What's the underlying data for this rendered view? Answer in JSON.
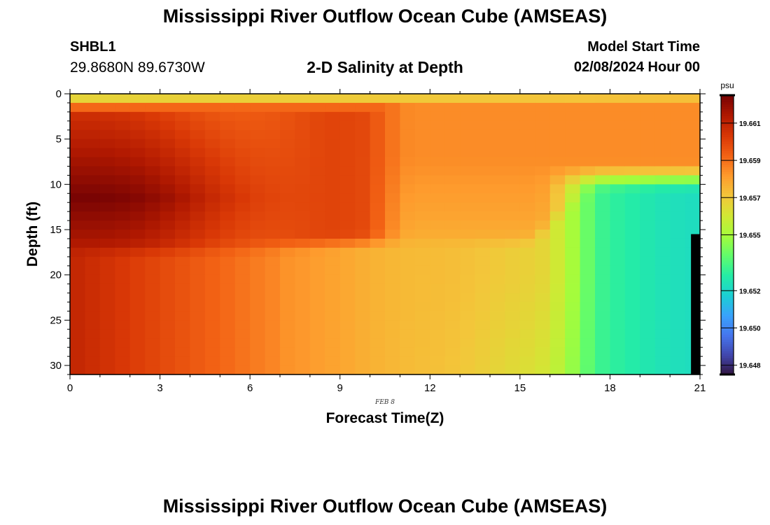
{
  "header": {
    "title": "Mississippi River Outflow Ocean Cube (AMSEAS)",
    "station_id": "SHBL1",
    "coordinates": "29.8680N  89.6730W",
    "plot_title": "2-D Salinity at Depth",
    "model_start_label": "Model Start Time",
    "model_start_value": "02/08/2024 Hour 00"
  },
  "footer": {
    "title": "Mississippi River Outflow Ocean Cube (AMSEAS)"
  },
  "chart_data": {
    "type": "heatmap",
    "title": "2-D Salinity at Depth",
    "xlabel": "Forecast Time(Z)",
    "ylabel": "Depth (ft)",
    "date_annotation": "FEB 8",
    "x_ticks": [
      0,
      3,
      6,
      9,
      12,
      15,
      18,
      21
    ],
    "y_ticks": [
      0,
      5,
      10,
      15,
      20,
      25,
      30
    ],
    "xlim": [
      0,
      21
    ],
    "ylim": [
      0,
      31
    ],
    "y_inverted": true,
    "no_data_region": {
      "x_start": 20.7,
      "depth_start": 15.5
    },
    "colorbar": {
      "unit": "psu",
      "min": 19.6475,
      "max": 19.6625,
      "ticks": [
        19.648,
        19.65,
        19.652,
        19.655,
        19.657,
        19.659,
        19.661
      ],
      "tick_labels": [
        "19.648",
        "19.650",
        "19.652",
        "19.655",
        "19.657",
        "19.659",
        "19.661"
      ],
      "colormap": [
        "#30123b",
        "#4145ab",
        "#4675ed",
        "#39a2fc",
        "#1bcfd4",
        "#24eca6",
        "#61fc6c",
        "#a4fc3c",
        "#d1e834",
        "#f3c63a",
        "#fe9b2d",
        "#f36315",
        "#d93806",
        "#b11901",
        "#7a0403"
      ]
    },
    "values_note": "",
    "x_hours": [
      0,
      0.5,
      1,
      1.5,
      2,
      2.5,
      3,
      3.5,
      4,
      4.5,
      5,
      5.5,
      6,
      6.5,
      7,
      7.5,
      8,
      8.5,
      9,
      9.5,
      10,
      10.5,
      11,
      11.5,
      12,
      12.5,
      13,
      13.5,
      14,
      14.5,
      15,
      15.5,
      16,
      16.5,
      17,
      17.5,
      18,
      18.5,
      19,
      19.5,
      20,
      20.5
    ],
    "depths_ft": [
      0,
      1,
      2,
      3,
      4,
      5,
      6,
      7,
      8,
      9,
      10,
      11,
      12,
      13,
      14,
      15,
      16,
      17,
      18,
      19,
      20,
      21,
      22,
      23,
      24,
      25,
      26,
      27,
      28,
      29,
      30
    ],
    "surface_layer": [
      [
        0,
        19.657
      ],
      [
        3,
        19.6572
      ],
      [
        6,
        19.6575
      ],
      [
        9,
        19.6578
      ],
      [
        12,
        19.6568
      ],
      [
        15,
        19.6566
      ],
      [
        18,
        19.656
      ],
      [
        21,
        19.6555
      ]
    ]
  }
}
